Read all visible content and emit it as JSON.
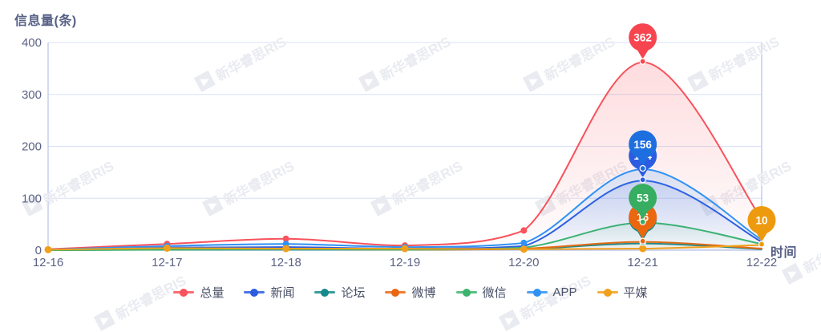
{
  "header": {
    "y_axis_title": "信息量(条)",
    "x_axis_title": "时间"
  },
  "watermark_text": "新华睿思RIS",
  "colors": {
    "axis_line": "#b3c0ee",
    "grid_line": "#d8dff7",
    "tick_text": "#5c6386",
    "legend_text": "#4a5168",
    "watermark": "#e9ebf1",
    "pin_text": "#ffffff"
  },
  "chart_data": {
    "type": "line",
    "title": "信息量(条)",
    "xlabel": "时间",
    "ylabel": "信息量(条)",
    "categories": [
      "12-16",
      "12-17",
      "12-18",
      "12-19",
      "12-20",
      "12-21",
      "12-22"
    ],
    "yticks": [
      0,
      100,
      200,
      300,
      400
    ],
    "ylim": [
      0,
      400
    ],
    "grid": true,
    "legend_position": "bottom",
    "smooth": true,
    "series": [
      {
        "name": "总量",
        "color": "#f8525c",
        "pin_color": "#f7454f",
        "fill_opacity": 0.2,
        "values": [
          2,
          12,
          22,
          9,
          38,
          362,
          60
        ],
        "max_marker": {
          "value": 362,
          "category": "12-21",
          "label_visible": true
        }
      },
      {
        "name": "新闻",
        "color": "#2c5ce0",
        "pin_color": "#2c5ce0",
        "fill_opacity": 0.14,
        "values": [
          1,
          5,
          6,
          3,
          8,
          134,
          16
        ],
        "max_marker": {
          "value": 134,
          "category": "12-21",
          "label_visible": true
        }
      },
      {
        "name": "论坛",
        "color": "#178a8c",
        "pin_color": "#178a8c",
        "fill_opacity": 0.06,
        "values": [
          0,
          1,
          1,
          1,
          2,
          13,
          2
        ],
        "max_marker": {
          "value": 13,
          "category": "12-21",
          "label_visible": false
        }
      },
      {
        "name": "微博",
        "color": "#eb670f",
        "pin_color": "#eb670f",
        "fill_opacity": 0.07,
        "values": [
          0,
          2,
          2,
          1,
          3,
          16,
          3
        ],
        "max_marker": {
          "value": 16,
          "category": "12-21",
          "label_visible": true
        }
      },
      {
        "name": "微信",
        "color": "#3cb46d",
        "pin_color": "#36ad60",
        "fill_opacity": 0.12,
        "values": [
          0,
          1,
          2,
          1,
          5,
          53,
          12
        ],
        "max_marker": {
          "value": 53,
          "category": "12-21",
          "label_visible": true
        }
      },
      {
        "name": "APP",
        "color": "#2f92f5",
        "pin_color": "#1d6fe0",
        "fill_opacity": 0.18,
        "values": [
          1,
          8,
          12,
          6,
          14,
          156,
          20
        ],
        "max_marker": {
          "value": 156,
          "category": "12-21",
          "label_visible": true
        }
      },
      {
        "name": "平媒",
        "color": "#f0a01c",
        "pin_color": "#ee9a0e",
        "fill_opacity": 0.06,
        "values": [
          1,
          4,
          3,
          3,
          2,
          3,
          10
        ],
        "max_marker": {
          "value": 10,
          "category": "12-22",
          "label_visible": true
        }
      }
    ]
  }
}
